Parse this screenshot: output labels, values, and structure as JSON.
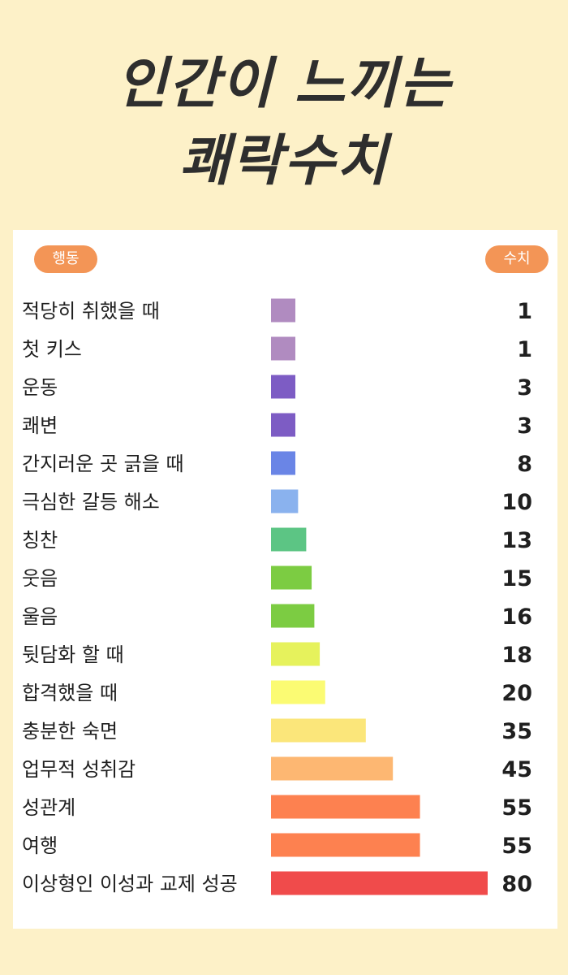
{
  "title_line1": "인간이 느끼는",
  "title_line2": "쾌락수치",
  "header_left": "행동",
  "header_right": "수치",
  "chart_data": {
    "type": "bar",
    "orientation": "horizontal",
    "categories": [
      "적당히 취했을 때",
      "첫 키스",
      "운동",
      "쾌변",
      "간지러운 곳 긁을 때",
      "극심한 갈등 해소",
      "칭찬",
      "웃음",
      "울음",
      "뒷담화 할 때",
      "합격했을 때",
      "충분한 숙면",
      "업무적 성취감",
      "성관계",
      "여행",
      "이상형인 이성과 교제 성공"
    ],
    "values": [
      1,
      1,
      3,
      3,
      8,
      10,
      13,
      15,
      16,
      18,
      20,
      35,
      45,
      55,
      55,
      80
    ],
    "colors": [
      "#b08bc0",
      "#b08bc0",
      "#7d5cc4",
      "#7d5cc4",
      "#6a85e6",
      "#8ab2ee",
      "#5cc584",
      "#7ccc42",
      "#7ccc42",
      "#e6f25c",
      "#fbfb73",
      "#fbe67a",
      "#fdb772",
      "#fd8150",
      "#fd8150",
      "#f04b4b"
    ],
    "grid": false,
    "legend": "none"
  }
}
